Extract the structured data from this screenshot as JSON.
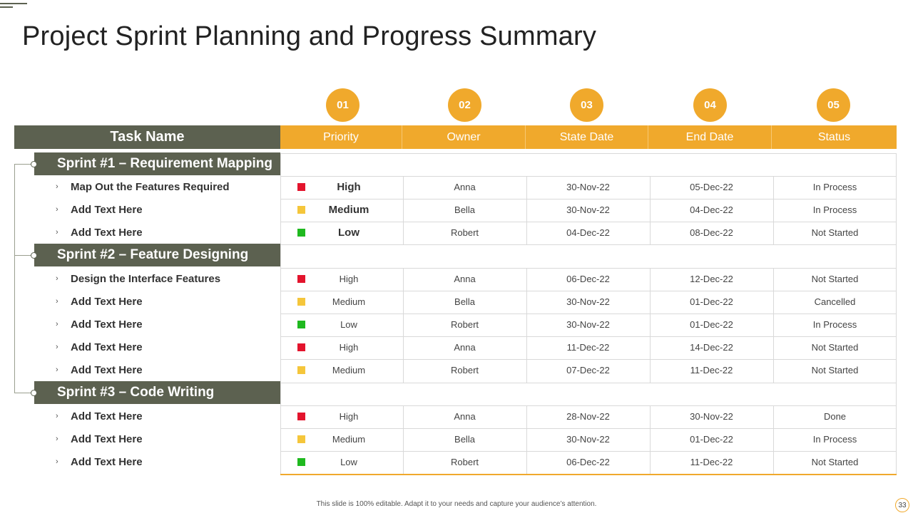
{
  "title": "Project Sprint Planning and Progress Summary",
  "columns": {
    "task": "Task Name",
    "headers": [
      {
        "num": "01",
        "label": "Priority"
      },
      {
        "num": "02",
        "label": "Owner"
      },
      {
        "num": "03",
        "label": "State Date"
      },
      {
        "num": "04",
        "label": "End Date"
      },
      {
        "num": "05",
        "label": "Status"
      }
    ]
  },
  "sprints": [
    {
      "label": "Sprint #1 – Requirement Mapping"
    },
    {
      "label": "Sprint #2 – Feature Designing"
    },
    {
      "label": "Sprint #3 – Code Writing"
    }
  ],
  "colors": {
    "high": "#e3142d",
    "medium": "#f5c63b",
    "low": "#1fb91f",
    "accent": "#f0a92c",
    "olive": "#5c6150"
  },
  "rows": [
    {
      "task": "Map Out the Features Required",
      "priority": "High",
      "owner": "Anna",
      "start": "30-Nov-22",
      "end": "05-Dec-22",
      "status": "In Process"
    },
    {
      "task": "Add Text Here",
      "priority": "Medium",
      "owner": "Bella",
      "start": "30-Nov-22",
      "end": "04-Dec-22",
      "status": "In Process"
    },
    {
      "task": "Add Text Here",
      "priority": "Low",
      "owner": "Robert",
      "start": "04-Dec-22",
      "end": "08-Dec-22",
      "status": "Not Started"
    },
    {
      "task": "Design the Interface Features",
      "priority": "High",
      "owner": "Anna",
      "start": "06-Dec-22",
      "end": "12-Dec-22",
      "status": "Not Started"
    },
    {
      "task": "Add Text Here",
      "priority": "Medium",
      "owner": "Bella",
      "start": "30-Nov-22",
      "end": "01-Dec-22",
      "status": "Cancelled"
    },
    {
      "task": "Add Text Here",
      "priority": "Low",
      "owner": "Robert",
      "start": "30-Nov-22",
      "end": "01-Dec-22",
      "status": "In Process"
    },
    {
      "task": "Add Text Here",
      "priority": "High",
      "owner": "Anna",
      "start": "11-Dec-22",
      "end": "14-Dec-22",
      "status": "Not Started"
    },
    {
      "task": "Add Text Here",
      "priority": "Medium",
      "owner": "Robert",
      "start": "07-Dec-22",
      "end": "11-Dec-22",
      "status": "Not Started"
    },
    {
      "task": "Add Text Here",
      "priority": "High",
      "owner": "Anna",
      "start": "28-Nov-22",
      "end": "30-Nov-22",
      "status": "Done"
    },
    {
      "task": "Add Text Here",
      "priority": "Medium",
      "owner": "Bella",
      "start": "30-Nov-22",
      "end": "01-Dec-22",
      "status": "In Process"
    },
    {
      "task": "Add Text Here",
      "priority": "Low",
      "owner": "Robert",
      "start": "06-Dec-22",
      "end": "11-Dec-22",
      "status": "Not Started"
    }
  ],
  "footer": "This slide is 100% editable. Adapt it to your needs and capture your audience’s attention.",
  "page_number": "33"
}
